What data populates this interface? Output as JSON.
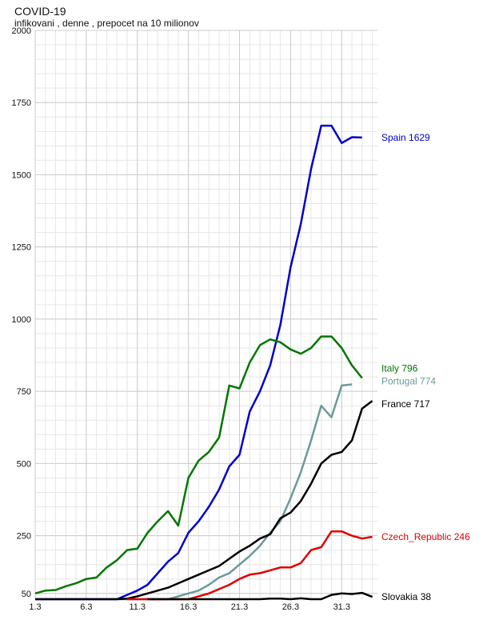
{
  "chart_data": {
    "type": "line",
    "title": "COVID-19",
    "subtitle": "infikovani , denne , prepocet na 10 milionov",
    "xlabel": "",
    "ylabel": "",
    "x": [
      1,
      2,
      3,
      4,
      5,
      6,
      7,
      8,
      9,
      10,
      11,
      12,
      13,
      14,
      15,
      16,
      17,
      18,
      19,
      20,
      21,
      22,
      23,
      24,
      25,
      26,
      27,
      28,
      29,
      30,
      31,
      32,
      33,
      34
    ],
    "x_ticks": [
      {
        "x": 1,
        "label": "1.3"
      },
      {
        "x": 6,
        "label": "6.3"
      },
      {
        "x": 11,
        "label": "11.3"
      },
      {
        "x": 16,
        "label": "16.3"
      },
      {
        "x": 21,
        "label": "21.3"
      },
      {
        "x": 26,
        "label": "26.3"
      },
      {
        "x": 31,
        "label": "31.3"
      }
    ],
    "xlim": [
      1,
      34.5
    ],
    "y_ticks": [
      50,
      250,
      500,
      750,
      1000,
      1250,
      1500,
      1750,
      2000
    ],
    "ylim": [
      30,
      2000
    ],
    "grid": true,
    "series": [
      {
        "name": "Spain",
        "end_label": "Spain 1629",
        "color": "#0000cc",
        "values": [
          0,
          1,
          2,
          3,
          5,
          10,
          15,
          20,
          30,
          45,
          60,
          80,
          120,
          160,
          190,
          260,
          300,
          350,
          410,
          490,
          530,
          680,
          750,
          840,
          980,
          1180,
          1330,
          1520,
          1670,
          1670,
          1610,
          1630,
          1629,
          null
        ]
      },
      {
        "name": "Italy",
        "end_label": "Italy 796",
        "color": "#007700",
        "values": [
          50,
          60,
          62,
          75,
          85,
          100,
          105,
          140,
          165,
          200,
          205,
          260,
          300,
          335,
          285,
          450,
          510,
          540,
          590,
          770,
          760,
          850,
          910,
          930,
          920,
          895,
          880,
          900,
          940,
          940,
          900,
          840,
          796,
          null
        ]
      },
      {
        "name": "Portugal",
        "end_label": "Portugal 774",
        "color": "#6a9a9a",
        "values": [
          null,
          null,
          null,
          null,
          null,
          null,
          null,
          null,
          1,
          3,
          8,
          14,
          20,
          30,
          40,
          50,
          60,
          80,
          105,
          120,
          150,
          180,
          215,
          260,
          300,
          380,
          470,
          580,
          700,
          660,
          770,
          774,
          null,
          null
        ]
      },
      {
        "name": "France",
        "end_label": "France 717",
        "color": "#000000",
        "values": [
          5,
          5,
          6,
          8,
          10,
          14,
          17,
          20,
          25,
          32,
          40,
          50,
          60,
          70,
          85,
          100,
          115,
          130,
          145,
          170,
          195,
          215,
          240,
          255,
          310,
          330,
          370,
          430,
          500,
          530,
          540,
          580,
          690,
          717
        ]
      },
      {
        "name": "Czech_Republic",
        "end_label": "Czech_Republic 246",
        "color": "#dd0000",
        "values": [
          null,
          null,
          null,
          null,
          null,
          null,
          null,
          null,
          null,
          0,
          2,
          5,
          10,
          15,
          20,
          25,
          40,
          50,
          65,
          80,
          100,
          115,
          120,
          130,
          140,
          140,
          155,
          200,
          210,
          265,
          265,
          250,
          240,
          246
        ]
      },
      {
        "name": "Slovakia",
        "end_label": "Slovakia 38",
        "color": "#000000",
        "values": [
          null,
          null,
          null,
          null,
          null,
          null,
          null,
          null,
          null,
          null,
          null,
          1,
          3,
          5,
          10,
          15,
          20,
          25,
          27,
          28,
          29,
          30,
          30,
          32,
          32,
          30,
          33,
          28,
          20,
          45,
          50,
          48,
          52,
          38
        ]
      }
    ]
  }
}
